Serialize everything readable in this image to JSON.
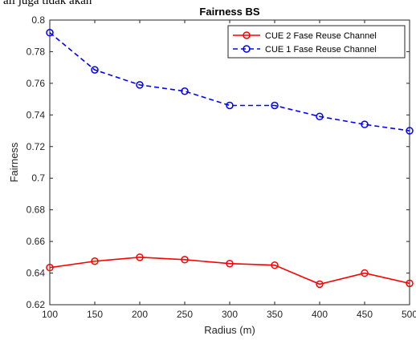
{
  "caption_fragment": "ali juga tidak akan",
  "chart_data": {
    "type": "line",
    "title": "Fairness BS",
    "xlabel": "Radius (m)",
    "ylabel": "Fairness",
    "xlim": [
      100,
      500
    ],
    "ylim": [
      0.62,
      0.8
    ],
    "xticks": [
      "100",
      "150",
      "200",
      "250",
      "300",
      "350",
      "400",
      "450",
      "500"
    ],
    "yticks": [
      "0.62",
      "0.64",
      "0.66",
      "0.68",
      "0.7",
      "0.72",
      "0.74",
      "0.76",
      "0.78",
      "0.8"
    ],
    "x": [
      100,
      150,
      200,
      250,
      300,
      350,
      400,
      450,
      500
    ],
    "grid": false,
    "legend_position": "top-right",
    "series": [
      {
        "name": "CUE 2 Fase Reuse Channel",
        "color": "#ff0000",
        "line_style": "solid",
        "marker": "circle",
        "values": [
          0.6435,
          0.6475,
          0.65,
          0.6485,
          0.646,
          0.645,
          0.633,
          0.64,
          0.6335
        ]
      },
      {
        "name": "CUE 1 Fase Reuse Channel",
        "color": "#0000ff",
        "line_style": "dashed",
        "marker": "circle",
        "values": [
          0.792,
          0.7685,
          0.759,
          0.755,
          0.746,
          0.746,
          0.739,
          0.734,
          0.73
        ]
      }
    ]
  }
}
